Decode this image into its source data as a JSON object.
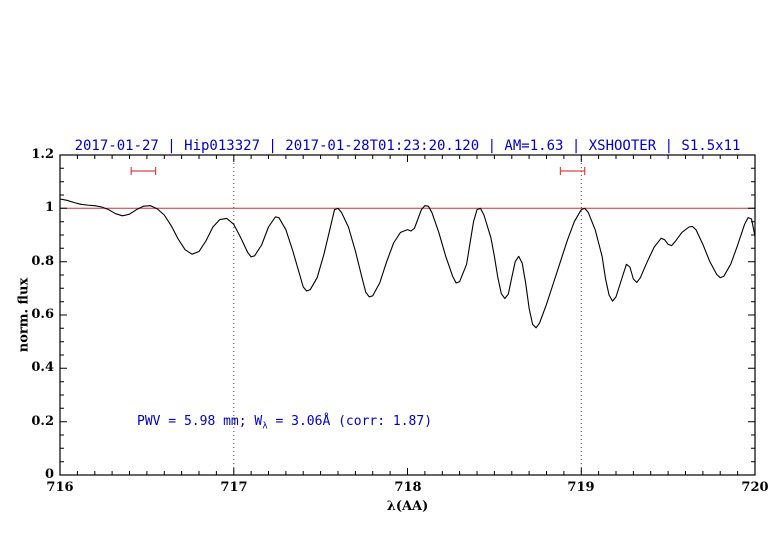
{
  "colors": {
    "title_blue": "#0000cc",
    "annotation_blue": "#0000cc",
    "red_line": "#cc3333",
    "marker_red": "#dd4444",
    "spectrum": "#000000",
    "grid_dotted": "#444444",
    "frame": "#000000"
  },
  "axes": {
    "x_ticks": [
      {
        "v": 716,
        "label": "716"
      },
      {
        "v": 717,
        "label": "717"
      },
      {
        "v": 718,
        "label": "718"
      },
      {
        "v": 719,
        "label": "719"
      },
      {
        "v": 720,
        "label": "720"
      }
    ],
    "y_ticks": [
      {
        "v": 0.0,
        "label": "0"
      },
      {
        "v": 0.2,
        "label": "0.2"
      },
      {
        "v": 0.4,
        "label": "0.4"
      },
      {
        "v": 0.6,
        "label": "0.6"
      },
      {
        "v": 0.8,
        "label": "0.8"
      },
      {
        "v": 1.0,
        "label": "1"
      },
      {
        "v": 1.2,
        "label": "1.2"
      }
    ],
    "x_minor_step": 0.1,
    "y_minor_step": 0.05
  },
  "chart_data": {
    "type": "line",
    "title": "2017-01-27 | Hip013327 | 2017-01-28T01:23:20.120 | AM=1.63 | XSHOOTER | S1.5x11",
    "xlabel": "λ(AA)",
    "ylabel": "norm. flux",
    "xlim": [
      716,
      720
    ],
    "ylim": [
      0,
      1.2
    ],
    "grid": "off",
    "reference_line": {
      "y": 1.0
    },
    "vlines": [
      {
        "x": 717
      },
      {
        "x": 719
      }
    ],
    "markers": [
      {
        "x_start": 716.41,
        "x_end": 716.55,
        "y": 1.14
      },
      {
        "x_start": 718.88,
        "x_end": 719.02,
        "y": 1.14
      }
    ],
    "annotation": {
      "text": "PWV = 5.98 mm; W_λ = 3.06Å (corr: 1.87)",
      "part1": "PWV = 5.98 mm; W",
      "sub": "λ",
      "part2": " = 3.06Å (corr: 1.87)",
      "x": 716.45,
      "y": 0.2
    },
    "series": [
      {
        "name": "telluric-spectrum",
        "points": [
          [
            716.0,
            1.035
          ],
          [
            716.04,
            1.03
          ],
          [
            716.08,
            1.022
          ],
          [
            716.12,
            1.015
          ],
          [
            716.16,
            1.012
          ],
          [
            716.2,
            1.01
          ],
          [
            716.24,
            1.005
          ],
          [
            716.28,
            0.995
          ],
          [
            716.32,
            0.98
          ],
          [
            716.36,
            0.972
          ],
          [
            716.4,
            0.978
          ],
          [
            716.44,
            0.995
          ],
          [
            716.48,
            1.008
          ],
          [
            716.52,
            1.01
          ],
          [
            716.56,
            0.998
          ],
          [
            716.6,
            0.975
          ],
          [
            716.64,
            0.935
          ],
          [
            716.68,
            0.885
          ],
          [
            716.72,
            0.845
          ],
          [
            716.76,
            0.828
          ],
          [
            716.8,
            0.838
          ],
          [
            716.84,
            0.878
          ],
          [
            716.88,
            0.93
          ],
          [
            716.92,
            0.958
          ],
          [
            716.96,
            0.962
          ],
          [
            717.0,
            0.94
          ],
          [
            717.04,
            0.89
          ],
          [
            717.08,
            0.835
          ],
          [
            717.1,
            0.818
          ],
          [
            717.12,
            0.822
          ],
          [
            717.16,
            0.862
          ],
          [
            717.2,
            0.93
          ],
          [
            717.24,
            0.968
          ],
          [
            717.26,
            0.965
          ],
          [
            717.3,
            0.92
          ],
          [
            717.34,
            0.84
          ],
          [
            717.38,
            0.75
          ],
          [
            717.4,
            0.705
          ],
          [
            717.42,
            0.69
          ],
          [
            717.44,
            0.695
          ],
          [
            717.48,
            0.74
          ],
          [
            717.52,
            0.83
          ],
          [
            717.56,
            0.94
          ],
          [
            717.58,
            0.995
          ],
          [
            717.6,
            1.0
          ],
          [
            717.62,
            0.985
          ],
          [
            717.66,
            0.93
          ],
          [
            717.7,
            0.84
          ],
          [
            717.74,
            0.735
          ],
          [
            717.76,
            0.685
          ],
          [
            717.78,
            0.668
          ],
          [
            717.8,
            0.672
          ],
          [
            717.84,
            0.72
          ],
          [
            717.88,
            0.8
          ],
          [
            717.92,
            0.87
          ],
          [
            717.96,
            0.91
          ],
          [
            718.0,
            0.92
          ],
          [
            718.02,
            0.915
          ],
          [
            718.04,
            0.925
          ],
          [
            718.06,
            0.96
          ],
          [
            718.08,
            0.995
          ],
          [
            718.1,
            1.01
          ],
          [
            718.12,
            1.008
          ],
          [
            718.14,
            0.985
          ],
          [
            718.18,
            0.91
          ],
          [
            718.22,
            0.82
          ],
          [
            718.26,
            0.745
          ],
          [
            718.28,
            0.72
          ],
          [
            718.3,
            0.725
          ],
          [
            718.34,
            0.79
          ],
          [
            718.36,
            0.87
          ],
          [
            718.38,
            0.95
          ],
          [
            718.4,
            0.995
          ],
          [
            718.42,
            1.0
          ],
          [
            718.44,
            0.975
          ],
          [
            718.48,
            0.89
          ],
          [
            718.5,
            0.82
          ],
          [
            718.52,
            0.74
          ],
          [
            718.54,
            0.68
          ],
          [
            718.56,
            0.662
          ],
          [
            718.58,
            0.678
          ],
          [
            718.6,
            0.74
          ],
          [
            718.62,
            0.8
          ],
          [
            718.64,
            0.82
          ],
          [
            718.66,
            0.795
          ],
          [
            718.68,
            0.72
          ],
          [
            718.7,
            0.625
          ],
          [
            718.72,
            0.565
          ],
          [
            718.74,
            0.552
          ],
          [
            718.76,
            0.57
          ],
          [
            718.8,
            0.64
          ],
          [
            718.84,
            0.72
          ],
          [
            718.88,
            0.8
          ],
          [
            718.92,
            0.88
          ],
          [
            718.96,
            0.95
          ],
          [
            719.0,
            0.995
          ],
          [
            719.02,
            1.0
          ],
          [
            719.04,
            0.985
          ],
          [
            719.08,
            0.92
          ],
          [
            719.12,
            0.82
          ],
          [
            719.14,
            0.735
          ],
          [
            719.16,
            0.675
          ],
          [
            719.18,
            0.652
          ],
          [
            719.2,
            0.668
          ],
          [
            719.24,
            0.75
          ],
          [
            719.26,
            0.79
          ],
          [
            719.28,
            0.78
          ],
          [
            719.3,
            0.735
          ],
          [
            719.32,
            0.722
          ],
          [
            719.34,
            0.74
          ],
          [
            719.38,
            0.8
          ],
          [
            719.42,
            0.855
          ],
          [
            719.46,
            0.888
          ],
          [
            719.48,
            0.882
          ],
          [
            719.5,
            0.865
          ],
          [
            719.52,
            0.86
          ],
          [
            719.54,
            0.875
          ],
          [
            719.58,
            0.91
          ],
          [
            719.62,
            0.93
          ],
          [
            719.64,
            0.932
          ],
          [
            719.66,
            0.92
          ],
          [
            719.7,
            0.865
          ],
          [
            719.74,
            0.8
          ],
          [
            719.78,
            0.752
          ],
          [
            719.8,
            0.74
          ],
          [
            719.82,
            0.745
          ],
          [
            719.86,
            0.79
          ],
          [
            719.9,
            0.862
          ],
          [
            719.94,
            0.94
          ],
          [
            719.96,
            0.965
          ],
          [
            719.98,
            0.96
          ],
          [
            720.0,
            0.895
          ]
        ]
      }
    ]
  }
}
